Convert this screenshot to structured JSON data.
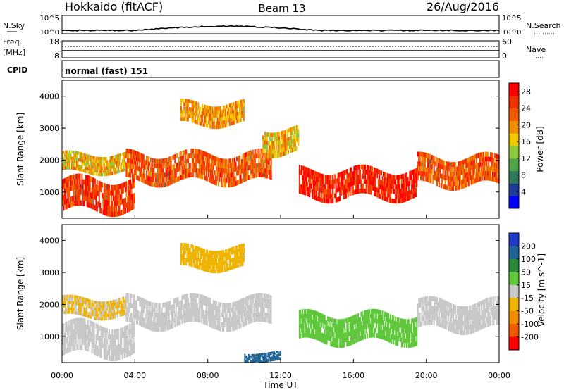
{
  "header": {
    "title": "Hokkaido (fitACF)",
    "beam": "Beam 13",
    "date": "26/Aug/2016"
  },
  "noise_panel": {
    "left_label": "N.Sky",
    "right_label": "N.Search",
    "tick_top": "10^5",
    "tick_bottom": "10^0"
  },
  "freq_panel": {
    "left_label_1": "Freq.",
    "left_label_2": "[MHz]",
    "left_tick_top": "18",
    "left_tick_bottom": "8",
    "right_label": "Nave",
    "right_tick_top": "60",
    "right_tick_bottom": "0"
  },
  "cpid_panel": {
    "label": "CPID",
    "value": "normal (fast) 151"
  },
  "time_axis": {
    "label": "Time UT",
    "ticks": [
      "00:00",
      "04:00",
      "08:00",
      "12:00",
      "16:00",
      "20:00",
      "00:00"
    ]
  },
  "colors": {
    "power_scale": [
      "#0000ff",
      "#1e3c96",
      "#2f7a5a",
      "#4fa64a",
      "#8cc83c",
      "#f0c800",
      "#f08c00",
      "#f05a00",
      "#f03200",
      "#ff0000"
    ],
    "velocity_scale": [
      "#1e3cc8",
      "#1e6496",
      "#2a8a3a",
      "#5ec83a",
      "#c8c8c8",
      "#f0b400",
      "#f08c00",
      "#f05a00",
      "#ff0000"
    ]
  },
  "chart_data": [
    {
      "type": "heatmap",
      "title": "",
      "xlabel": "Time UT",
      "ylabel": "Slant Range [km]",
      "x_ticks": [
        "00:00",
        "04:00",
        "08:00",
        "12:00",
        "16:00",
        "20:00",
        "00:00"
      ],
      "y_ticks": [
        1000,
        2000,
        3000,
        4000
      ],
      "ylim": [
        180,
        4500
      ],
      "colorbar": {
        "label": "Power [dB]",
        "ticks": [
          4,
          8,
          12,
          16,
          20,
          24,
          28
        ],
        "range": [
          0,
          30
        ]
      },
      "echo_bands": [
        {
          "start_hr": 0.0,
          "end_hr": 4.0,
          "range_low_km": 400,
          "range_high_km": 1400,
          "power_db": 26
        },
        {
          "start_hr": 0.0,
          "end_hr": 3.5,
          "range_low_km": 1600,
          "range_high_km": 2200,
          "power_db": 18
        },
        {
          "start_hr": 3.5,
          "end_hr": 11.5,
          "range_low_km": 1300,
          "range_high_km": 2200,
          "power_db": 24
        },
        {
          "start_hr": 6.5,
          "end_hr": 10.0,
          "range_low_km": 3100,
          "range_high_km": 3800,
          "power_db": 20
        },
        {
          "start_hr": 11.0,
          "end_hr": 13.0,
          "range_low_km": 2200,
          "range_high_km": 3000,
          "power_db": 18
        },
        {
          "start_hr": 13.0,
          "end_hr": 19.5,
          "range_low_km": 800,
          "range_high_km": 1700,
          "power_db": 28
        },
        {
          "start_hr": 19.5,
          "end_hr": 24.0,
          "range_low_km": 1200,
          "range_high_km": 2100,
          "power_db": 24
        }
      ]
    },
    {
      "type": "heatmap",
      "title": "",
      "xlabel": "Time UT",
      "ylabel": "Slant Range [km]",
      "x_ticks": [
        "00:00",
        "04:00",
        "08:00",
        "12:00",
        "16:00",
        "20:00",
        "00:00"
      ],
      "y_ticks": [
        1000,
        2000,
        3000,
        4000
      ],
      "ylim": [
        180,
        4500
      ],
      "colorbar": {
        "label": "Velocity [m s^-1]",
        "ticks": [
          200,
          100,
          50,
          15,
          -15,
          -50,
          -100,
          -200
        ],
        "range": [
          -250,
          250
        ]
      },
      "echo_bands": [
        {
          "start_hr": 0.0,
          "end_hr": 4.0,
          "range_low_km": 400,
          "range_high_km": 1400,
          "velocity_ms": 0
        },
        {
          "start_hr": 0.0,
          "end_hr": 3.5,
          "range_low_km": 1600,
          "range_high_km": 2200,
          "velocity_ms": -20
        },
        {
          "start_hr": 3.5,
          "end_hr": 11.5,
          "range_low_km": 1300,
          "range_high_km": 2200,
          "velocity_ms": 0
        },
        {
          "start_hr": 6.5,
          "end_hr": 10.0,
          "range_low_km": 3100,
          "range_high_km": 3800,
          "velocity_ms": -30
        },
        {
          "start_hr": 13.0,
          "end_hr": 19.5,
          "range_low_km": 800,
          "range_high_km": 1700,
          "velocity_ms": 30
        },
        {
          "start_hr": 19.5,
          "end_hr": 24.0,
          "range_low_km": 1200,
          "range_high_km": 2100,
          "velocity_ms": 0
        },
        {
          "start_hr": 10.0,
          "end_hr": 12.0,
          "range_low_km": 200,
          "range_high_km": 500,
          "velocity_ms": 120
        }
      ]
    }
  ]
}
